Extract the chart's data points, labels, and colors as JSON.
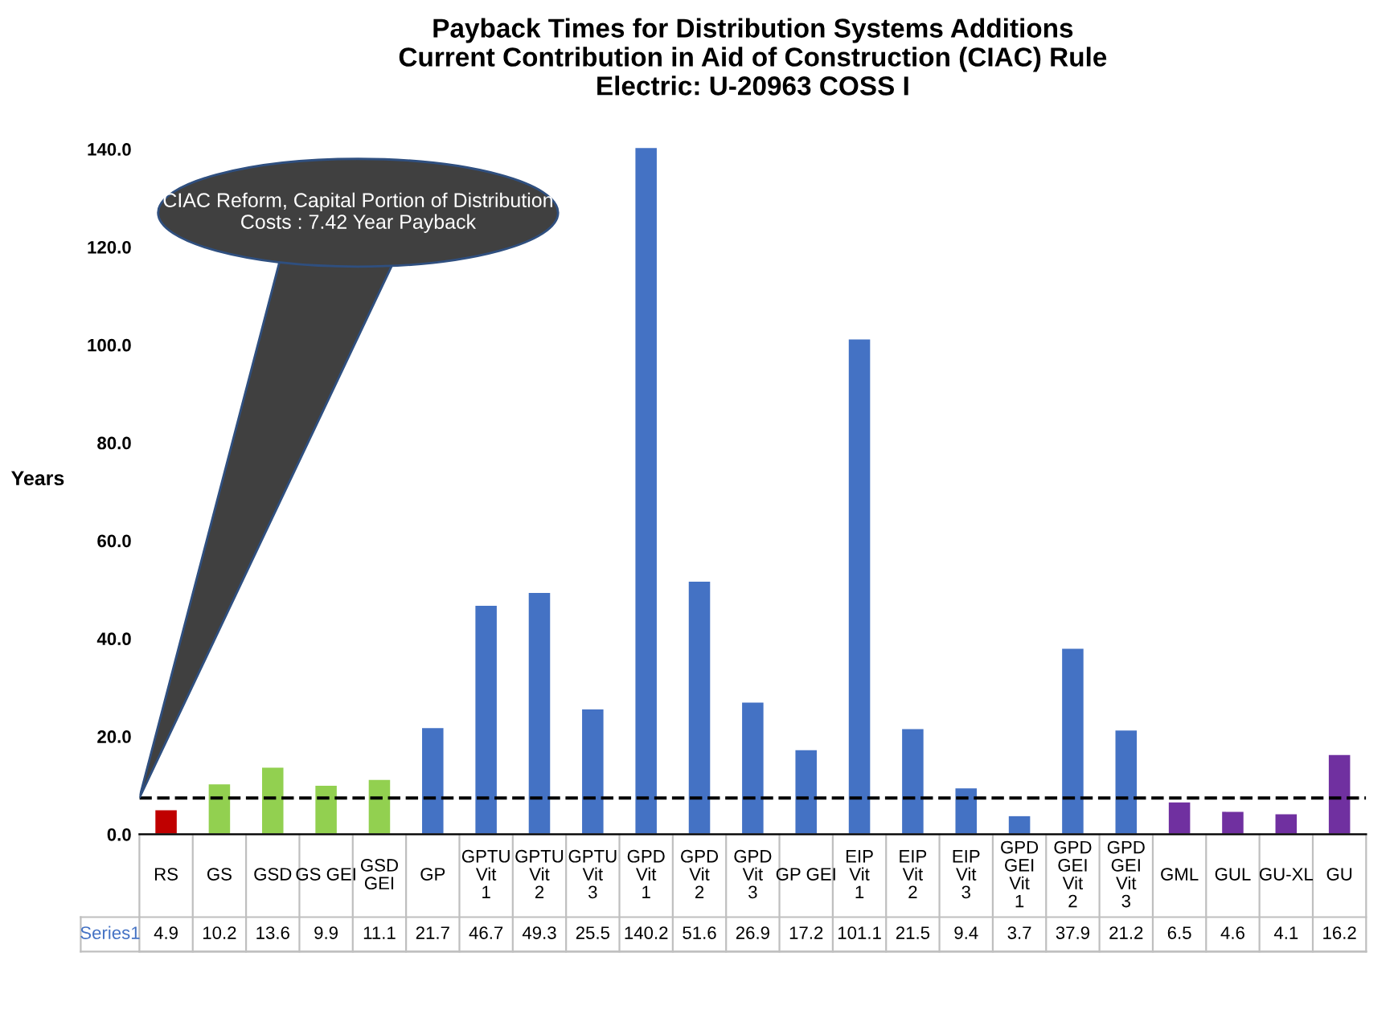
{
  "chart_data": {
    "type": "bar",
    "title": "Payback Times for Distribution Systems Additions\nCurrent Contribution in Aid of Construction (CIAC) Rule\nElectric: U-20963 COSS I",
    "ylabel": "Years",
    "categories": [
      "RS",
      "GS",
      "GSD",
      "GS GEI",
      "GSD GEI",
      "GP",
      "GPTU Vit 1",
      "GPTU Vit 2",
      "GPTU Vit 3",
      "GPD Vit 1",
      "GPD Vit 2",
      "GPD Vit 3",
      "GP GEI",
      "EIP Vit 1",
      "EIP Vit 2",
      "EIP Vit 3",
      "GPD GEI Vit 1",
      "GPD GEI Vit 2",
      "GPD GEI Vit 3",
      "GML",
      "GUL",
      "GU-XL",
      "GU"
    ],
    "series": [
      {
        "name": "Series1",
        "values": [
          4.9,
          10.2,
          13.6,
          9.9,
          11.1,
          21.7,
          46.7,
          49.3,
          25.5,
          140.2,
          51.6,
          26.9,
          17.2,
          101.1,
          21.5,
          9.4,
          3.7,
          37.9,
          21.2,
          6.5,
          4.6,
          4.1,
          16.2
        ],
        "colors": [
          "#c00000",
          "#92d050",
          "#92d050",
          "#92d050",
          "#92d050",
          "#4472c4",
          "#4472c4",
          "#4472c4",
          "#4472c4",
          "#4472c4",
          "#4472c4",
          "#4472c4",
          "#4472c4",
          "#4472c4",
          "#4472c4",
          "#4472c4",
          "#4472c4",
          "#4472c4",
          "#4472c4",
          "#7030a0",
          "#7030a0",
          "#7030a0",
          "#7030a0"
        ]
      }
    ],
    "ylim": [
      0,
      141
    ],
    "yticks": [
      {
        "value": 0,
        "label": "0.0"
      },
      {
        "value": 20,
        "label": "20.0"
      },
      {
        "value": 40,
        "label": "40.0"
      },
      {
        "value": 60,
        "label": "60.0"
      },
      {
        "value": 80,
        "label": "80.0"
      },
      {
        "value": 100,
        "label": "100.0"
      },
      {
        "value": 120,
        "label": "120.0"
      },
      {
        "value": 140,
        "label": "140.0"
      }
    ],
    "ref_lines": [
      {
        "axis": "y",
        "value": 7.42,
        "label": "CIAC Reform, Capital Portion of Distribution Costs : 7.42 Year Payback",
        "color": "#000000",
        "line_style": "dashed"
      }
    ],
    "data_labels": true,
    "grid": false,
    "legend": false
  }
}
